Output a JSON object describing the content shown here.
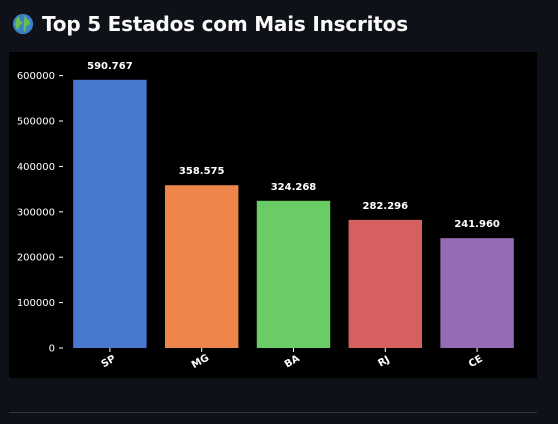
{
  "header": {
    "icon": "globe-icon",
    "title": "Top 5 Estados com Mais Inscritos"
  },
  "chart_data": {
    "type": "bar",
    "title": "",
    "xlabel": "",
    "ylabel": "",
    "categories": [
      "SP",
      "MG",
      "BA",
      "RJ",
      "CE"
    ],
    "values": [
      590767,
      358575,
      324268,
      282296,
      241960
    ],
    "value_labels": [
      "590.767",
      "358.575",
      "324.268",
      "282.296",
      "241.960"
    ],
    "colors": [
      "#4878d0",
      "#ee854a",
      "#6acc64",
      "#d65f5f",
      "#956cb4"
    ],
    "ylim": [
      0,
      630000
    ],
    "yticks": [
      0,
      100000,
      200000,
      300000,
      400000,
      500000,
      600000
    ],
    "ytick_labels": [
      "0",
      "100000",
      "200000",
      "300000",
      "400000",
      "500000",
      "600000"
    ],
    "grid": false,
    "background": "#000000",
    "text_color": "#ffffff"
  }
}
